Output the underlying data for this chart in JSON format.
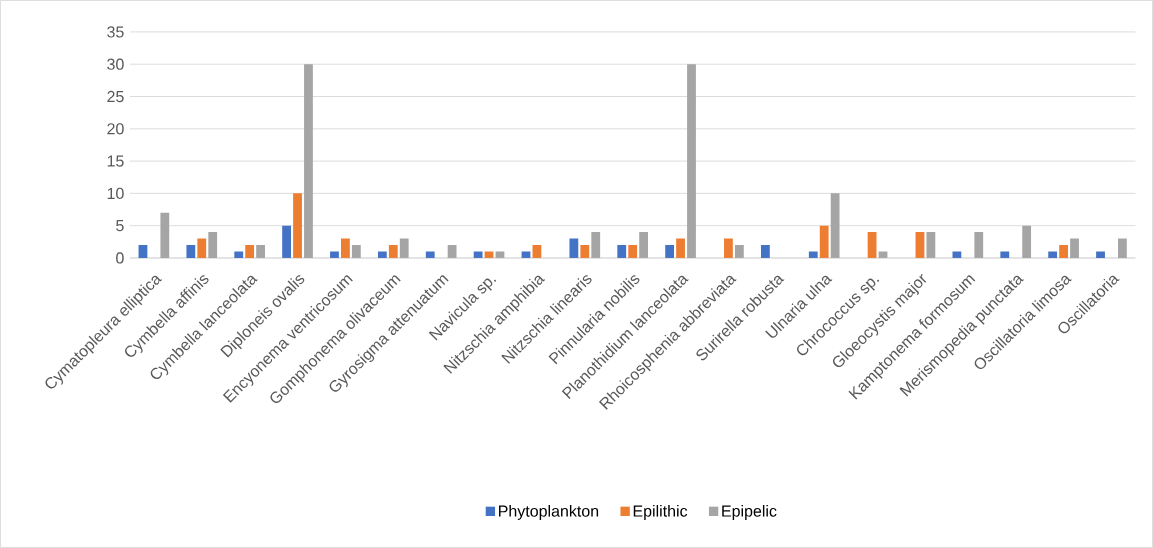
{
  "chart_data": {
    "type": "bar",
    "categories": [
      "Cymatopleura elliptica",
      "Cymbella affinis",
      "Cymbella lanceolata",
      "Diploneis ovalis",
      "Encyonema ventricosum",
      "Gomphonema olivaceum",
      "Gyrosigma attenuatum",
      "Navicula sp.",
      "Nitzschia amphibia",
      "Nitzschia linearis",
      "Pinnularia nobilis",
      "Planothidium lanceolata",
      "Rhoicosphenia abbreviata",
      "Surirella robusta",
      "Ulnaria ulna",
      "Chrococcus sp.",
      "Gloeocystis major",
      "Kamptonema formosum",
      "Merismopedia punctata",
      "Oscillatoria limosa",
      "Oscillatoria"
    ],
    "series": [
      {
        "name": "Phytoplankton",
        "color": "#4472c4",
        "values": [
          2,
          2,
          1,
          5,
          1,
          1,
          1,
          1,
          1,
          3,
          2,
          2,
          null,
          2,
          1,
          null,
          null,
          1,
          1,
          1,
          1
        ]
      },
      {
        "name": "Epilithic",
        "color": "#ed7d31",
        "values": [
          null,
          3,
          2,
          10,
          3,
          2,
          null,
          1,
          2,
          2,
          2,
          3,
          3,
          null,
          5,
          4,
          4,
          null,
          null,
          2,
          null
        ]
      },
      {
        "name": "Epipelic",
        "color": "#a5a5a5",
        "values": [
          7,
          4,
          2,
          30,
          2,
          3,
          2,
          1,
          null,
          4,
          4,
          30,
          2,
          null,
          10,
          1,
          4,
          4,
          5,
          3,
          3
        ]
      }
    ],
    "ylim": [
      0,
      35
    ],
    "yticks": [
      0,
      5,
      10,
      15,
      20,
      25,
      30,
      35
    ],
    "grid": "y",
    "legend": "bottom"
  }
}
